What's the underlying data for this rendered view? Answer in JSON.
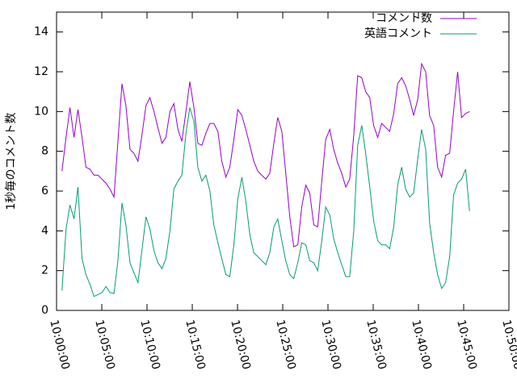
{
  "chart_data": {
    "type": "line",
    "y_label": "1秒毎のコメント数",
    "xlim": [
      "10:00:00",
      "10:50:00"
    ],
    "xticks": [
      "10:00:00",
      "10:05:00",
      "10:10:00",
      "10:15:00",
      "10:20:00",
      "10:25:00",
      "10:30:00",
      "10:35:00",
      "10:40:00",
      "10:45:00",
      "10:50:00"
    ],
    "ylim": [
      0,
      15
    ],
    "yticks": [
      0,
      2,
      4,
      6,
      8,
      10,
      12,
      14
    ],
    "legend": "top-right",
    "x": [
      "10:00:36",
      "10:01:03",
      "10:01:29",
      "10:01:56",
      "10:02:22",
      "10:02:49",
      "10:03:15",
      "10:03:42",
      "10:04:08",
      "10:04:35",
      "10:05:01",
      "10:05:28",
      "10:05:54",
      "10:06:21",
      "10:06:47",
      "10:07:14",
      "10:07:40",
      "10:08:07",
      "10:08:33",
      "10:09:00",
      "10:09:26",
      "10:09:53",
      "10:10:19",
      "10:10:46",
      "10:11:12",
      "10:11:39",
      "10:12:05",
      "10:12:32",
      "10:12:58",
      "10:13:25",
      "10:13:51",
      "10:14:18",
      "10:14:44",
      "10:15:11",
      "10:15:37",
      "10:16:04",
      "10:16:30",
      "10:16:57",
      "10:17:23",
      "10:17:50",
      "10:18:16",
      "10:18:43",
      "10:19:09",
      "10:19:36",
      "10:20:02",
      "10:20:29",
      "10:20:55",
      "10:21:22",
      "10:21:48",
      "10:22:15",
      "10:22:41",
      "10:23:08",
      "10:23:34",
      "10:24:01",
      "10:24:27",
      "10:24:54",
      "10:25:20",
      "10:25:47",
      "10:26:13",
      "10:26:40",
      "10:27:06",
      "10:27:33",
      "10:27:59",
      "10:28:26",
      "10:28:52",
      "10:29:19",
      "10:29:45",
      "10:30:12",
      "10:30:38",
      "10:31:05",
      "10:31:31",
      "10:31:58",
      "10:32:24",
      "10:32:51",
      "10:33:17",
      "10:33:44",
      "10:34:10",
      "10:34:37",
      "10:35:03",
      "10:35:30",
      "10:35:56",
      "10:36:23",
      "10:36:49",
      "10:37:16",
      "10:37:42",
      "10:38:09",
      "10:38:35",
      "10:39:02",
      "10:39:28",
      "10:39:55",
      "10:40:21",
      "10:40:48",
      "10:41:14",
      "10:41:41",
      "10:42:07",
      "10:42:34",
      "10:43:00",
      "10:43:27",
      "10:43:53",
      "10:44:20",
      "10:44:46",
      "10:45:13",
      "10:45:39"
    ],
    "series": [
      {
        "name": "コメント数",
        "color": "#9400d3",
        "values": [
          7.0,
          8.7,
          10.2,
          8.7,
          10.1,
          8.7,
          7.2,
          7.1,
          6.8,
          6.8,
          6.6,
          6.4,
          6.1,
          5.7,
          8.5,
          11.4,
          10.3,
          8.1,
          7.9,
          7.5,
          8.8,
          10.3,
          10.7,
          10.0,
          9.2,
          8.4,
          8.7,
          10.0,
          10.4,
          9.1,
          8.5,
          10.0,
          11.5,
          10.2,
          8.4,
          8.3,
          8.9,
          9.4,
          9.4,
          9.0,
          7.5,
          6.7,
          7.2,
          8.6,
          10.1,
          9.8,
          9.1,
          8.3,
          7.5,
          7.0,
          6.8,
          6.6,
          6.9,
          8.4,
          9.7,
          9.0,
          6.9,
          4.7,
          3.2,
          3.3,
          5.2,
          6.3,
          5.9,
          4.3,
          4.2,
          6.5,
          8.6,
          9.1,
          8.1,
          7.4,
          6.9,
          6.2,
          6.6,
          8.8,
          11.8,
          11.7,
          11.0,
          10.7,
          9.3,
          8.7,
          9.4,
          9.2,
          9.0,
          9.9,
          11.4,
          11.7,
          11.3,
          10.6,
          9.8,
          10.6,
          12.4,
          12.0,
          9.8,
          9.3,
          7.2,
          6.7,
          7.8,
          7.9,
          10.0,
          12.0,
          9.7,
          9.9,
          10.0
        ]
      },
      {
        "name": "英語コメント",
        "color": "#009e73",
        "values": [
          1.0,
          4.1,
          5.3,
          4.6,
          6.2,
          2.6,
          1.8,
          1.3,
          0.7,
          0.8,
          0.9,
          1.2,
          0.9,
          0.85,
          2.5,
          5.4,
          4.3,
          2.4,
          1.9,
          1.4,
          3.0,
          4.7,
          4.1,
          3.0,
          2.4,
          2.1,
          2.6,
          4.0,
          6.1,
          6.5,
          6.8,
          8.9,
          10.2,
          9.5,
          7.2,
          6.5,
          6.8,
          6.0,
          4.3,
          3.4,
          2.6,
          1.8,
          1.7,
          3.3,
          5.6,
          6.7,
          5.5,
          3.8,
          2.9,
          2.7,
          2.5,
          2.3,
          2.9,
          4.2,
          4.6,
          3.5,
          2.5,
          1.8,
          1.6,
          2.4,
          3.4,
          3.3,
          2.5,
          2.4,
          2.0,
          3.5,
          5.2,
          4.8,
          3.6,
          2.9,
          2.3,
          1.7,
          1.7,
          4.0,
          8.3,
          9.3,
          7.9,
          6.2,
          4.5,
          3.5,
          3.3,
          3.3,
          3.1,
          4.2,
          6.3,
          7.2,
          6.1,
          5.7,
          5.9,
          7.6,
          9.1,
          8.1,
          4.4,
          2.9,
          1.8,
          1.1,
          1.4,
          2.7,
          5.8,
          6.4,
          6.6,
          7.1,
          5.0
        ]
      }
    ]
  }
}
